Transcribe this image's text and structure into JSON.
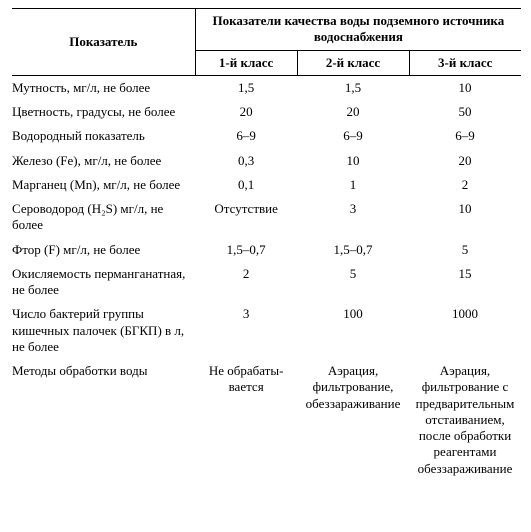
{
  "table": {
    "type": "table",
    "header": {
      "indicator": "Показатель",
      "group": "Показатели качества воды подземного источника водоснабжения",
      "classes": [
        "1-й класс",
        "2-й класс",
        "3-й класс"
      ]
    },
    "rows": [
      {
        "label": "Мутность, мг/л, не более",
        "v": [
          "1,5",
          "1,5",
          "10"
        ]
      },
      {
        "label": "Цветность, градусы, не более",
        "v": [
          "20",
          "20",
          "50"
        ]
      },
      {
        "label": "Водородный показатель",
        "v": [
          "6–9",
          "6–9",
          "6–9"
        ]
      },
      {
        "label": "Железо (Fe), мг/л, не более",
        "v": [
          "0,3",
          "10",
          "20"
        ]
      },
      {
        "label": "Марганец (Mn), мг/л, не более",
        "v": [
          "0,1",
          "1",
          "2"
        ]
      },
      {
        "label": "Сероводород (H₂S) мг/л, не более",
        "v": [
          "Отсутствие",
          "3",
          "10"
        ]
      },
      {
        "label": "Фтор (F) мг/л, не более",
        "v": [
          "1,5–0,7",
          "1,5–0,7",
          "5"
        ]
      },
      {
        "label": "Окисляемость перманганатная, не более",
        "v": [
          "2",
          "5",
          "15"
        ]
      },
      {
        "label": "Число бактерий группы кишечных палочек (БГКП) в л, не более",
        "v": [
          "3",
          "100",
          "1000"
        ]
      },
      {
        "label": "Методы обработки воды",
        "v": [
          "Не обрабаты­вается",
          "Аэрация, фильтрова­ние, обеззаражи­вание",
          "Аэрация, фильтрование с предвари­тельным отстаиванием, после обработки реагентами обеззаражи­вание"
        ]
      }
    ],
    "style": {
      "font_family": "Times New Roman",
      "font_size_pt": 10,
      "header_font_weight": "bold",
      "border_color": "#000000",
      "background_color": "#ffffff",
      "text_color": "#000000",
      "column_widths_pct": [
        36,
        20,
        22,
        22
      ],
      "body_has_borders": false,
      "header_has_borders": true
    }
  }
}
